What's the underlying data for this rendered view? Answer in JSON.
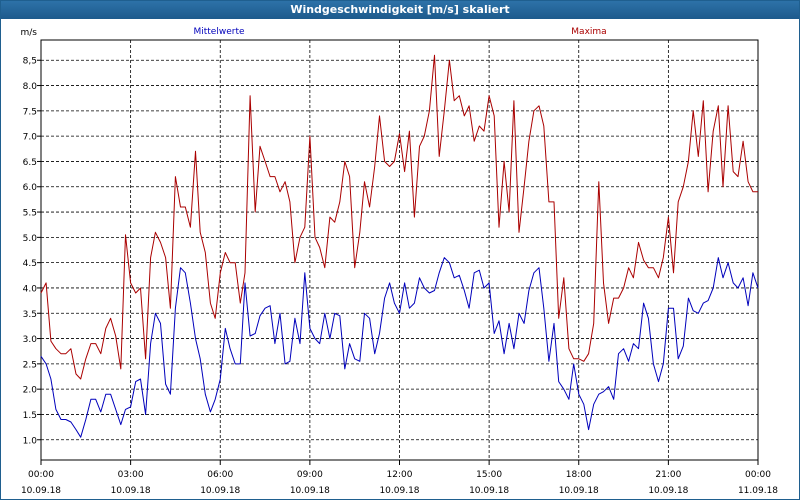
{
  "window": {
    "title": "Windgeschwindigkeit [m/s] skaliert"
  },
  "chart_data": {
    "type": "line",
    "title": "Windgeschwindigkeit [m/s] skaliert",
    "ylabel": "m/s",
    "xlabel": "",
    "ylim": [
      0.6,
      8.9
    ],
    "yticks": [
      {
        "v": 1.0,
        "label": "1.0"
      },
      {
        "v": 1.5,
        "label": "1.5"
      },
      {
        "v": 2.0,
        "label": "2.0"
      },
      {
        "v": 2.5,
        "label": "2.5"
      },
      {
        "v": 3.0,
        "label": "3.0"
      },
      {
        "v": 3.5,
        "label": "3.5"
      },
      {
        "v": 4.0,
        "label": "4.0"
      },
      {
        "v": 4.5,
        "label": "4.5"
      },
      {
        "v": 5.0,
        "label": "5.0"
      },
      {
        "v": 5.5,
        "label": "5.5"
      },
      {
        "v": 6.0,
        "label": "6.0"
      },
      {
        "v": 6.5,
        "label": "6.5"
      },
      {
        "v": 7.0,
        "label": "7.0"
      },
      {
        "v": 7.5,
        "label": "7.5"
      },
      {
        "v": 8.0,
        "label": "8.0"
      },
      {
        "v": 8.5,
        "label": "8,5"
      }
    ],
    "xlim": [
      0,
      24
    ],
    "xticks": [
      {
        "h": 0,
        "time": "00:00",
        "date": "10.09.18"
      },
      {
        "h": 3,
        "time": "03:00",
        "date": "10.09.18"
      },
      {
        "h": 6,
        "time": "06:00",
        "date": "10.09.18"
      },
      {
        "h": 9,
        "time": "09:00",
        "date": "10.09.18"
      },
      {
        "h": 12,
        "time": "12:00",
        "date": "10.09.18"
      },
      {
        "h": 15,
        "time": "15:00",
        "date": "10.09.18"
      },
      {
        "h": 18,
        "time": "18:00",
        "date": "10.09.18"
      },
      {
        "h": 21,
        "time": "21:00",
        "date": "10.09.18"
      },
      {
        "h": 24,
        "time": "00:00",
        "date": "11.09.18"
      }
    ],
    "grid": true,
    "series": [
      {
        "name": "Mittelwerte",
        "color": "#0000bb",
        "x": [
          0,
          0.17,
          0.33,
          0.5,
          0.67,
          0.83,
          1,
          1.17,
          1.33,
          1.5,
          1.67,
          1.83,
          2,
          2.17,
          2.33,
          2.5,
          2.67,
          2.83,
          3,
          3.17,
          3.33,
          3.5,
          3.67,
          3.83,
          4,
          4.17,
          4.33,
          4.5,
          4.67,
          4.83,
          5,
          5.17,
          5.33,
          5.5,
          5.67,
          5.83,
          6,
          6.17,
          6.33,
          6.5,
          6.67,
          6.83,
          7,
          7.17,
          7.33,
          7.5,
          7.67,
          7.83,
          8,
          8.17,
          8.33,
          8.5,
          8.67,
          8.83,
          9,
          9.17,
          9.33,
          9.5,
          9.67,
          9.83,
          10,
          10.17,
          10.33,
          10.5,
          10.67,
          10.83,
          11,
          11.17,
          11.33,
          11.5,
          11.67,
          11.83,
          12,
          12.17,
          12.33,
          12.5,
          12.67,
          12.83,
          13,
          13.17,
          13.33,
          13.5,
          13.67,
          13.83,
          14,
          14.17,
          14.33,
          14.5,
          14.67,
          14.83,
          15,
          15.17,
          15.33,
          15.5,
          15.67,
          15.83,
          16,
          16.17,
          16.33,
          16.5,
          16.67,
          16.83,
          17,
          17.17,
          17.33,
          17.5,
          17.67,
          17.83,
          18,
          18.17,
          18.33,
          18.5,
          18.67,
          18.83,
          19,
          19.17,
          19.33,
          19.5,
          19.67,
          19.83,
          20,
          20.17,
          20.33,
          20.5,
          20.67,
          20.83,
          21,
          21.17,
          21.33,
          21.5,
          21.67,
          21.83,
          22,
          22.17,
          22.33,
          22.5,
          22.67,
          22.83,
          23,
          23.17,
          23.33,
          23.5,
          23.67,
          23.83,
          24
        ],
        "y": [
          2.65,
          2.5,
          2.2,
          1.6,
          1.4,
          1.4,
          1.35,
          1.2,
          1.05,
          1.4,
          1.8,
          1.8,
          1.55,
          1.9,
          1.9,
          1.6,
          1.3,
          1.6,
          1.65,
          2.15,
          2.2,
          1.5,
          2.9,
          3.5,
          3.3,
          2.1,
          1.9,
          3.6,
          4.4,
          4.3,
          3.7,
          3.0,
          2.6,
          1.9,
          1.55,
          1.8,
          2.2,
          3.2,
          2.8,
          2.5,
          2.5,
          4.1,
          3.05,
          3.1,
          3.45,
          3.6,
          3.65,
          2.9,
          3.5,
          2.5,
          2.55,
          3.4,
          2.9,
          4.3,
          3.2,
          3.0,
          2.9,
          3.5,
          3.0,
          3.5,
          3.45,
          2.4,
          2.9,
          2.6,
          2.55,
          3.5,
          3.4,
          2.7,
          3.1,
          3.8,
          4.1,
          3.7,
          3.5,
          4.1,
          3.6,
          3.7,
          4.2,
          4.0,
          3.9,
          3.95,
          4.3,
          4.6,
          4.5,
          4.2,
          4.25,
          3.95,
          3.6,
          4.3,
          4.35,
          4.0,
          4.1,
          3.1,
          3.35,
          2.7,
          3.3,
          2.8,
          3.5,
          3.3,
          3.95,
          4.3,
          4.4,
          3.6,
          2.55,
          3.3,
          2.15,
          2.0,
          1.8,
          2.5,
          1.9,
          1.7,
          1.2,
          1.7,
          1.9,
          1.95,
          2.05,
          1.8,
          2.7,
          2.8,
          2.55,
          2.9,
          2.8,
          3.7,
          3.4,
          2.5,
          2.15,
          2.5,
          3.6,
          3.6,
          2.6,
          2.85,
          3.8,
          3.55,
          3.5,
          3.7,
          3.75,
          4.0,
          4.6,
          4.2,
          4.5,
          4.1,
          4.0,
          4.2,
          3.65,
          4.3,
          4.0
        ]
      },
      {
        "name": "Maxima",
        "color": "#aa0000",
        "x": [
          0,
          0.17,
          0.33,
          0.5,
          0.67,
          0.83,
          1,
          1.17,
          1.33,
          1.5,
          1.67,
          1.83,
          2,
          2.17,
          2.33,
          2.5,
          2.67,
          2.83,
          3,
          3.17,
          3.33,
          3.5,
          3.67,
          3.83,
          4,
          4.17,
          4.33,
          4.5,
          4.67,
          4.83,
          5,
          5.17,
          5.33,
          5.5,
          5.67,
          5.83,
          6,
          6.17,
          6.33,
          6.5,
          6.67,
          6.83,
          7,
          7.17,
          7.33,
          7.5,
          7.67,
          7.83,
          8,
          8.17,
          8.33,
          8.5,
          8.67,
          8.83,
          9,
          9.17,
          9.33,
          9.5,
          9.67,
          9.83,
          10,
          10.17,
          10.33,
          10.5,
          10.67,
          10.83,
          11,
          11.17,
          11.33,
          11.5,
          11.67,
          11.83,
          12,
          12.17,
          12.33,
          12.5,
          12.67,
          12.83,
          13,
          13.17,
          13.33,
          13.5,
          13.67,
          13.83,
          14,
          14.17,
          14.33,
          14.5,
          14.67,
          14.83,
          15,
          15.17,
          15.33,
          15.5,
          15.67,
          15.83,
          16,
          16.17,
          16.33,
          16.5,
          16.67,
          16.83,
          17,
          17.17,
          17.33,
          17.5,
          17.67,
          17.83,
          18,
          18.17,
          18.33,
          18.5,
          18.67,
          18.83,
          19,
          19.17,
          19.33,
          19.5,
          19.67,
          19.83,
          20,
          20.17,
          20.33,
          20.5,
          20.67,
          20.83,
          21,
          21.17,
          21.33,
          21.5,
          21.67,
          21.83,
          22,
          22.17,
          22.33,
          22.5,
          22.67,
          22.83,
          23,
          23.17,
          23.33,
          23.5,
          23.67,
          23.83,
          24
        ],
        "y": [
          3.9,
          4.1,
          2.95,
          2.8,
          2.7,
          2.7,
          2.8,
          2.3,
          2.2,
          2.6,
          2.9,
          2.9,
          2.7,
          3.2,
          3.4,
          3.05,
          2.4,
          5.05,
          4.1,
          3.9,
          4.0,
          2.6,
          4.6,
          5.1,
          4.9,
          4.6,
          3.6,
          6.2,
          5.6,
          5.6,
          5.2,
          6.7,
          5.1,
          4.7,
          3.7,
          3.4,
          4.3,
          4.7,
          4.5,
          4.5,
          3.7,
          4.3,
          7.8,
          5.5,
          6.8,
          6.5,
          6.2,
          6.2,
          5.9,
          6.1,
          5.7,
          4.5,
          5.0,
          5.2,
          7.0,
          5.0,
          4.8,
          4.4,
          5.4,
          5.3,
          5.7,
          6.5,
          6.2,
          4.4,
          5.1,
          6.1,
          5.6,
          6.4,
          7.4,
          6.5,
          6.4,
          6.5,
          7.05,
          6.3,
          7.1,
          5.4,
          6.8,
          7.0,
          7.5,
          8.6,
          6.6,
          7.5,
          8.5,
          7.7,
          7.8,
          7.4,
          7.6,
          6.9,
          7.2,
          7.1,
          7.8,
          7.4,
          5.2,
          6.5,
          5.5,
          7.7,
          5.1,
          6.0,
          6.9,
          7.5,
          7.6,
          7.2,
          5.7,
          5.7,
          3.4,
          4.2,
          2.8,
          2.6,
          2.6,
          2.55,
          2.7,
          3.3,
          6.1,
          4.1,
          3.3,
          3.8,
          3.8,
          4.0,
          4.4,
          4.2,
          4.9,
          4.55,
          4.4,
          4.4,
          4.2,
          4.6,
          5.4,
          4.3,
          5.7,
          6.0,
          6.5,
          7.5,
          6.6,
          7.7,
          5.9,
          7.1,
          7.6,
          6.0,
          7.6,
          6.3,
          6.2,
          6.9,
          6.1,
          5.9,
          5.9
        ]
      }
    ]
  }
}
